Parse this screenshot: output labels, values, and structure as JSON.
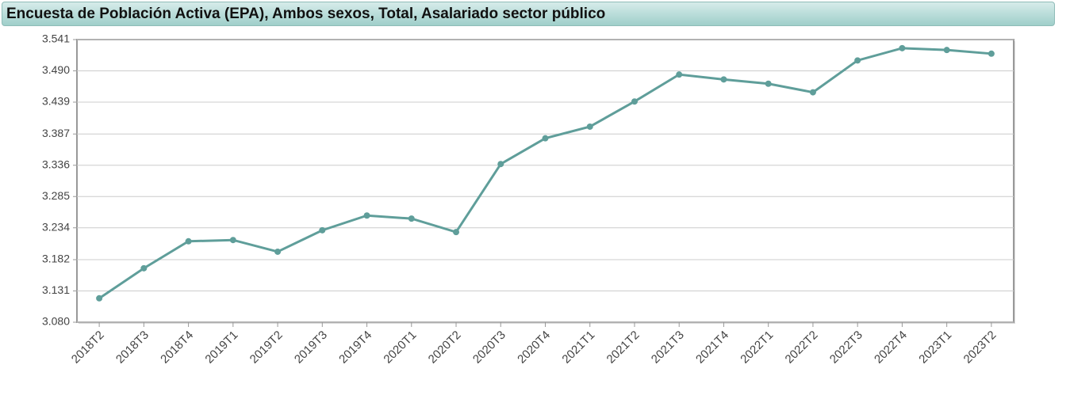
{
  "chart_data": {
    "type": "line",
    "title": "Encuesta de Población Activa (EPA), Ambos sexos, Total, Asalariado sector público",
    "categories": [
      "2018T2",
      "2018T3",
      "2018T4",
      "2019T1",
      "2019T2",
      "2019T3",
      "2019T4",
      "2020T1",
      "2020T2",
      "2020T3",
      "2020T4",
      "2021T1",
      "2021T2",
      "2021T3",
      "2021T4",
      "2022T1",
      "2022T2",
      "2022T3",
      "2022T4",
      "2023T1",
      "2023T2"
    ],
    "series": [
      {
        "color": "#5f9e9a",
        "values": [
          3.119,
          3.168,
          3.212,
          3.214,
          3.195,
          3.23,
          3.254,
          3.249,
          3.227,
          3.338,
          3.38,
          3.399,
          3.44,
          3.484,
          3.476,
          3.469,
          3.455,
          3.507,
          3.527,
          3.524,
          3.518
        ]
      }
    ],
    "ylim": [
      3.08,
      3.541
    ],
    "yticks": [
      {
        "value": 3.08,
        "label": "3.080"
      },
      3.131,
      3.182,
      3.234,
      3.285,
      3.336,
      3.387,
      3.439,
      {
        "value": 3.49,
        "label": "3.490"
      },
      3.541
    ],
    "grid": true
  }
}
